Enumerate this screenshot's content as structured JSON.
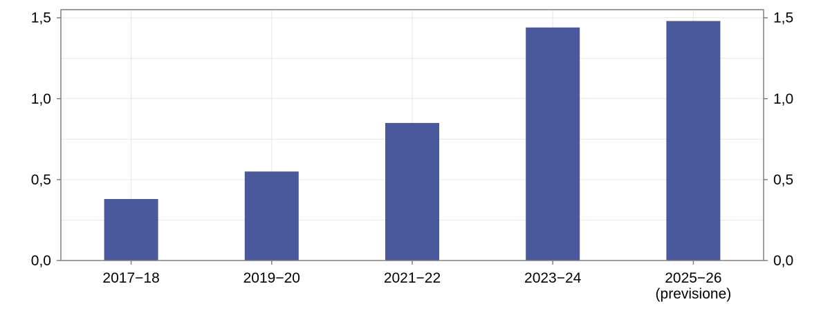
{
  "chart_data": {
    "type": "bar",
    "categories": [
      "2017−18",
      "2019−20",
      "2021−22",
      "2023−24",
      "2025−26\n(previsione)"
    ],
    "values": [
      0.38,
      0.55,
      0.85,
      1.44,
      1.48
    ],
    "ylim": [
      0,
      1.55
    ],
    "yticks": [
      0.0,
      0.5,
      1.0,
      1.5
    ],
    "ytick_labels": [
      "0,0",
      "0,5",
      "1,0",
      "1,5"
    ],
    "right_axis": true,
    "grid": true,
    "bar_color": "#4a589e",
    "grid_color": "#e6e6e6",
    "axis_color": "#7f7f7f"
  }
}
